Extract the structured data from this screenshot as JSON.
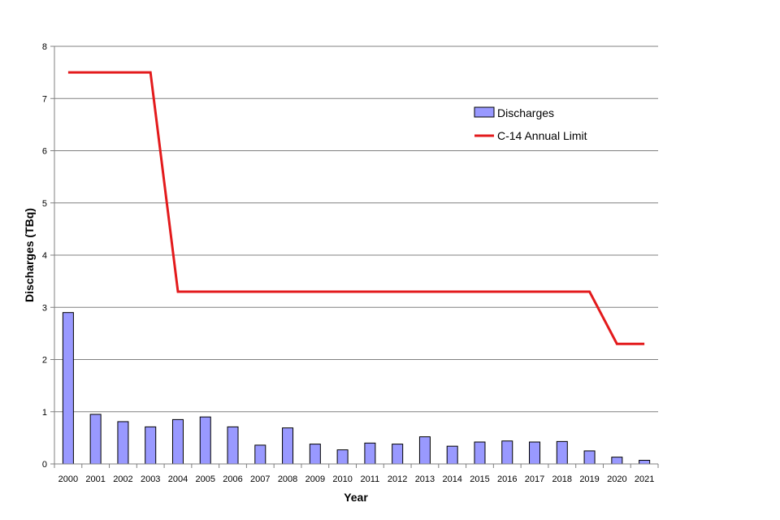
{
  "chart_data": {
    "type": "bar",
    "title": "",
    "xlabel": "Year",
    "ylabel": "Discharges (TBq)",
    "ylim": [
      0,
      8
    ],
    "yticks": [
      0,
      1,
      2,
      3,
      4,
      5,
      6,
      7,
      8
    ],
    "grid": "horizontal",
    "legend_position": "top-right",
    "categories": [
      "2000",
      "2001",
      "2002",
      "2003",
      "2004",
      "2005",
      "2006",
      "2007",
      "2008",
      "2009",
      "2010",
      "2011",
      "2012",
      "2013",
      "2014",
      "2015",
      "2016",
      "2017",
      "2018",
      "2019",
      "2020",
      "2021"
    ],
    "series": [
      {
        "name": "Discharges",
        "type": "bar",
        "color": "#9999ff",
        "values": [
          2.9,
          0.95,
          0.81,
          0.71,
          0.85,
          0.9,
          0.71,
          0.36,
          0.69,
          0.38,
          0.27,
          0.4,
          0.38,
          0.52,
          0.34,
          0.42,
          0.44,
          0.42,
          0.43,
          0.25,
          0.13,
          0.07
        ]
      },
      {
        "name": "C-14 Annual Limit",
        "type": "line",
        "color": "#e31a1c",
        "values": [
          7.5,
          7.5,
          7.5,
          7.5,
          3.3,
          3.3,
          3.3,
          3.3,
          3.3,
          3.3,
          3.3,
          3.3,
          3.3,
          3.3,
          3.3,
          3.3,
          3.3,
          3.3,
          3.3,
          3.3,
          2.3,
          2.3
        ]
      }
    ]
  }
}
